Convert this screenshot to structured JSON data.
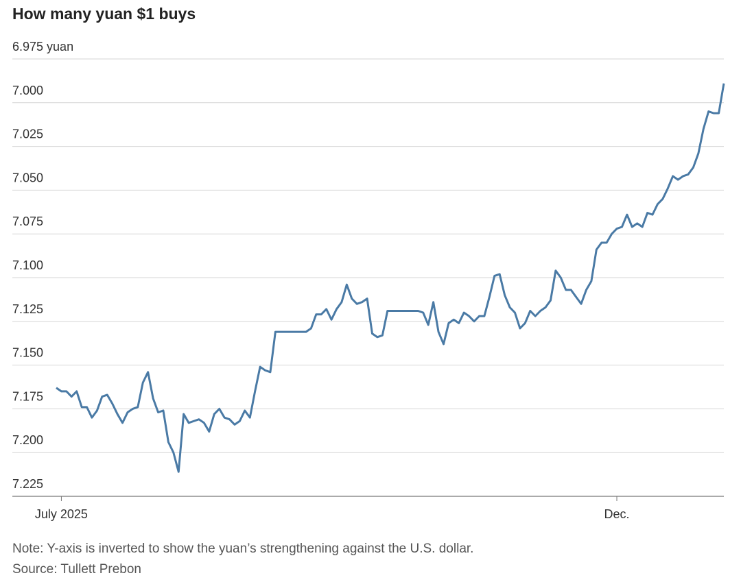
{
  "chart_data": {
    "type": "line",
    "title": "How many yuan $1 buys",
    "note": "Note: Y-axis is inverted to show the yuan’s strengthening against the U.S. dollar.",
    "source": "Source: Tullett Prebon",
    "inverted": true,
    "grid": true,
    "color": "#4a7aa5",
    "ylim": [
      6.975,
      7.225
    ],
    "yticks": [
      {
        "value": 6.975,
        "label": "6.975 yuan"
      },
      {
        "value": 7,
        "label": "7.000"
      },
      7.025,
      {
        "value": 7.05,
        "label": "7.050"
      },
      7.075,
      {
        "value": 7.1,
        "label": "7.100"
      },
      7.125,
      {
        "value": 7.15,
        "label": "7.150"
      },
      7.175,
      {
        "value": 7.2,
        "label": "7.200"
      },
      7.225
    ],
    "categories": [
      null,
      "July 2025",
      null,
      null,
      null,
      null,
      null,
      null,
      null,
      null,
      null,
      null,
      null,
      null,
      null,
      null,
      null,
      null,
      null,
      null,
      null,
      null,
      null,
      null,
      null,
      null,
      null,
      null,
      null,
      null,
      null,
      null,
      null,
      null,
      null,
      null,
      null,
      null,
      null,
      null,
      null,
      null,
      null,
      null,
      null,
      null,
      null,
      null,
      null,
      null,
      null,
      null,
      null,
      null,
      null,
      null,
      null,
      null,
      null,
      null,
      null,
      null,
      null,
      null,
      null,
      null,
      null,
      null,
      null,
      null,
      null,
      null,
      null,
      null,
      null,
      null,
      null,
      null,
      null,
      null,
      null,
      null,
      null,
      null,
      null,
      null,
      null,
      null,
      null,
      null,
      null,
      null,
      null,
      null,
      null,
      null,
      null,
      null,
      null,
      null,
      null,
      null,
      null,
      null,
      null,
      null,
      null,
      null,
      null,
      null,
      "Dec.",
      null,
      null,
      null,
      null,
      null,
      null,
      null,
      null,
      null,
      null,
      null,
      null,
      null,
      null,
      null,
      null,
      null,
      null,
      null,
      null,
      null
    ],
    "values": [
      7.163,
      7.165,
      7.165,
      7.168,
      7.165,
      7.174,
      7.174,
      7.18,
      7.176,
      7.168,
      7.167,
      7.172,
      7.178,
      7.183,
      7.177,
      7.175,
      7.174,
      7.16,
      7.154,
      7.169,
      7.177,
      7.176,
      7.194,
      7.2,
      7.211,
      7.178,
      7.183,
      7.182,
      7.181,
      7.183,
      7.188,
      7.178,
      7.175,
      7.18,
      7.181,
      7.184,
      7.182,
      7.176,
      7.18,
      7.165,
      7.151,
      7.153,
      7.154,
      7.131,
      7.131,
      7.131,
      7.131,
      7.131,
      7.131,
      7.131,
      7.129,
      7.121,
      7.121,
      7.118,
      7.124,
      7.118,
      7.114,
      7.104,
      7.112,
      7.115,
      7.114,
      7.112,
      7.132,
      7.134,
      7.133,
      7.119,
      7.119,
      7.119,
      7.119,
      7.119,
      7.119,
      7.119,
      7.12,
      7.127,
      7.114,
      7.131,
      7.138,
      7.126,
      7.124,
      7.126,
      7.12,
      7.122,
      7.125,
      7.122,
      7.122,
      7.111,
      7.099,
      7.098,
      7.11,
      7.117,
      7.12,
      7.129,
      7.126,
      7.119,
      7.122,
      7.119,
      7.117,
      7.113,
      7.096,
      7.1,
      7.107,
      7.107,
      7.111,
      7.115,
      7.107,
      7.102,
      7.084,
      7.08,
      7.08,
      7.075,
      7.072,
      7.071,
      7.064,
      7.071,
      7.069,
      7.071,
      7.063,
      7.064,
      7.058,
      7.055,
      7.049,
      7.042,
      7.044,
      7.042,
      7.041,
      7.037,
      7.029,
      7.015,
      7.005,
      7.006,
      7.006,
      6.989
    ]
  }
}
